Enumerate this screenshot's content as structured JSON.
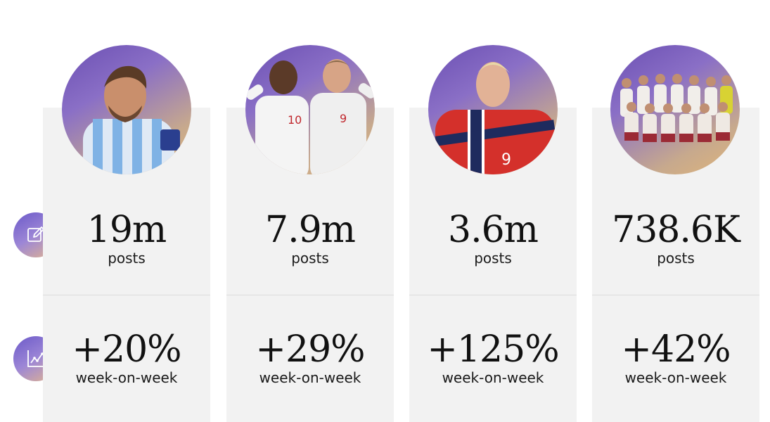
{
  "colors": {
    "card_bg": "#f2f2f2",
    "accent_gradient_start": "#6b59c9",
    "accent_gradient_end": "#e3b58d",
    "text": "#111111"
  },
  "row_icons": {
    "posts": "pencil-edit-icon",
    "growth": "line-chart-icon"
  },
  "cards": [
    {
      "image": "player-argentina-photo",
      "posts_value": "19m",
      "posts_label": "posts",
      "growth_value": "+20%",
      "growth_label": "week-on-week"
    },
    {
      "image": "players-england-photo",
      "posts_value": "7.9m",
      "posts_label": "posts",
      "growth_value": "+29%",
      "growth_label": "week-on-week"
    },
    {
      "image": "player-norway-photo",
      "posts_value": "3.6m",
      "posts_label": "posts",
      "growth_value": "+125%",
      "growth_label": "week-on-week"
    },
    {
      "image": "team-photo",
      "posts_value": "738.6K",
      "posts_label": "posts",
      "growth_value": "+42%",
      "growth_label": "week-on-week"
    }
  ]
}
